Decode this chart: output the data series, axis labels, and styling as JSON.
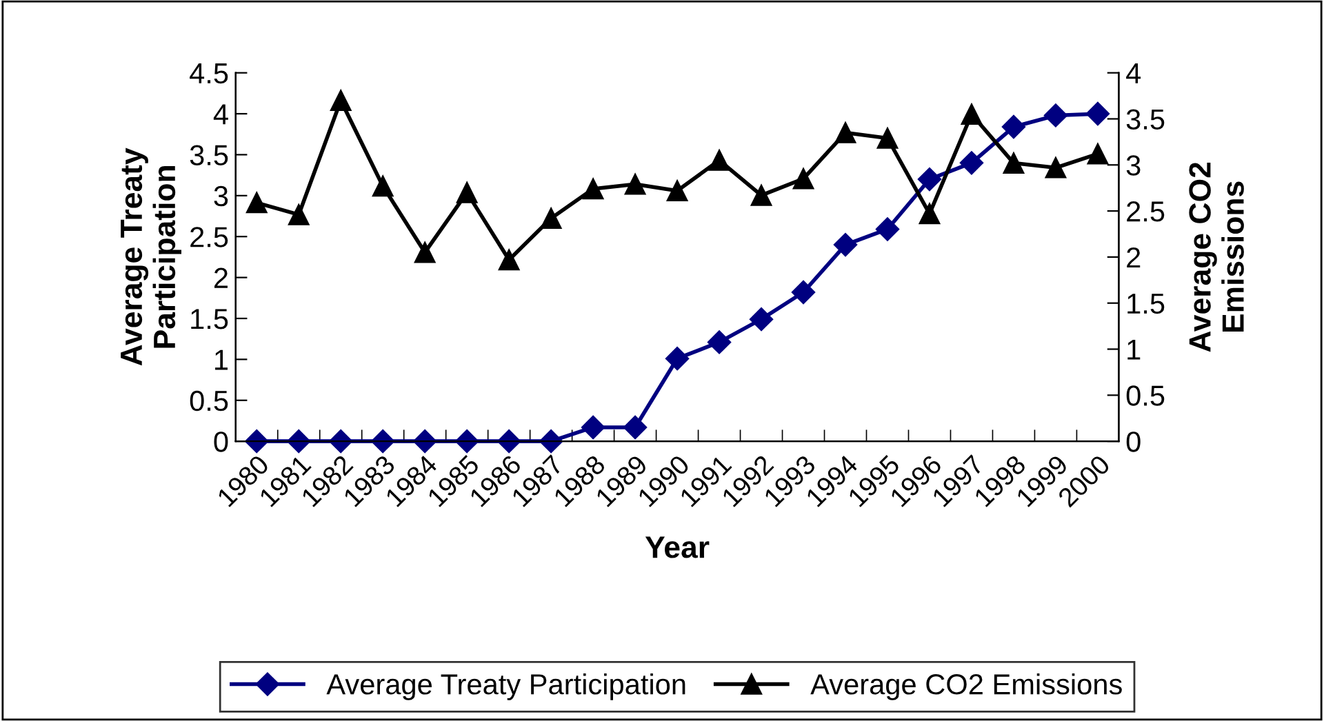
{
  "chart_data": {
    "type": "line",
    "xlabel": "Year",
    "ylabel": "Average Treaty\nParticipation",
    "y2label": "Average CO2\nEmissions",
    "categories": [
      "1980",
      "1981",
      "1982",
      "1983",
      "1984",
      "1985",
      "1986",
      "1987",
      "1988",
      "1989",
      "1990",
      "1991",
      "1992",
      "1993",
      "1994",
      "1995",
      "1996",
      "1997",
      "1998",
      "1999",
      "2000"
    ],
    "series": [
      {
        "name": "Average Treaty Participation",
        "color": "#000080",
        "marker": "diamond",
        "values": [
          0,
          0,
          0,
          0,
          0,
          0,
          0,
          0,
          0.17,
          0.17,
          1.01,
          1.21,
          1.49,
          1.82,
          2.4,
          2.59,
          3.2,
          3.4,
          3.84,
          3.98,
          4.0
        ]
      },
      {
        "name": "Average CO2 Emissions",
        "color": "#000000",
        "marker": "triangle",
        "axis": "y2",
        "values": [
          2.59,
          2.46,
          3.7,
          2.77,
          2.05,
          2.7,
          1.97,
          2.42,
          2.74,
          2.79,
          2.72,
          3.05,
          2.67,
          2.85,
          3.35,
          3.29,
          2.47,
          3.55,
          3.02,
          2.97,
          3.12
        ]
      }
    ],
    "ylim": [
      0,
      4.5
    ],
    "yticks": [
      0,
      0.5,
      1,
      1.5,
      2,
      2.5,
      3,
      3.5,
      4,
      4.5
    ],
    "y2lim": [
      0,
      4
    ],
    "y2ticks": [
      0,
      0.5,
      1,
      1.5,
      2,
      2.5,
      3,
      3.5,
      4
    ],
    "grid": false,
    "legend": "bottom",
    "line_style": "solid"
  }
}
